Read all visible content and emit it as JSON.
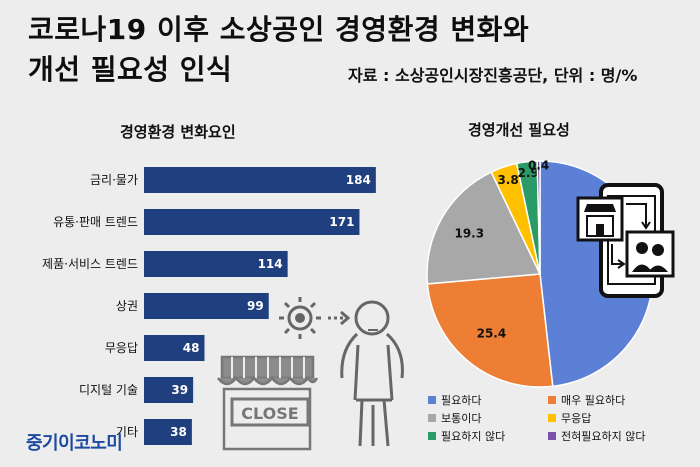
{
  "header": {
    "title_line1": "코로나19 이후 소상공인 경영환경 변화와",
    "title_line2": "개선 필요성 인식",
    "source": "자료 : 소상공인시장진흥공단, 단위 : 명/%"
  },
  "logo": "중기이코노미",
  "chart_data": [
    {
      "type": "bar",
      "orientation": "horizontal",
      "title": "경영환경 변화요인",
      "categories": [
        "금리·물가",
        "유통·판매 트렌드",
        "제품·서비스 트렌드",
        "상권",
        "무응답",
        "디지털 기술",
        "기타"
      ],
      "values": [
        184,
        171,
        114,
        99,
        48,
        39,
        38
      ],
      "xlim": [
        0,
        200
      ],
      "grid": false,
      "color": "#203f7f"
    },
    {
      "type": "pie",
      "title": "경영개선 필요성",
      "labels": [
        "필요하다",
        "매우 필요하다",
        "보통이다",
        "무응답",
        "필요하지 않다",
        "전혀필요하지 않다"
      ],
      "values": [
        48.2,
        25.4,
        19.3,
        3.8,
        2.9,
        0.4
      ],
      "colors": [
        "#5b80d6",
        "#ee7e33",
        "#a8a8a8",
        "#ffc000",
        "#2a9b66",
        "#7a4fa8"
      ],
      "legend": "bottom"
    }
  ],
  "illustration_icons": [
    "virus-person-icon",
    "closed-store-icon",
    "phone-commerce-icon"
  ]
}
